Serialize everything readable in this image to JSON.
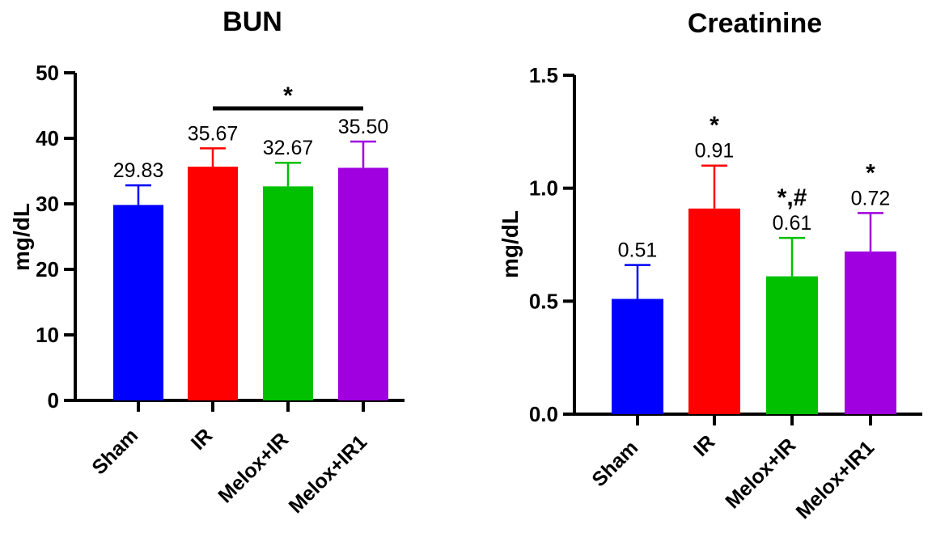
{
  "chart_data": [
    {
      "type": "bar",
      "title": "BUN",
      "ylabel": "mg/dL",
      "ylim": [
        0,
        50
      ],
      "yticks": [
        "0",
        "10",
        "20",
        "30",
        "40",
        "50"
      ],
      "categories": [
        "Sham",
        "IR",
        "Melox+IR",
        "Melox+IR1"
      ],
      "values": [
        29.83,
        35.67,
        32.67,
        35.5
      ],
      "errors": [
        3.0,
        2.8,
        3.6,
        4.0
      ],
      "value_labels": [
        "29.83",
        "35.67",
        "32.67",
        "35.50"
      ],
      "colors": [
        "#0000FF",
        "#FF0000",
        "#00C000",
        "#A000E0"
      ],
      "significance": {
        "bracket_from": 1,
        "bracket_to": 3,
        "label": "*"
      },
      "bar_marks": [
        "",
        "",
        "",
        ""
      ]
    },
    {
      "type": "bar",
      "title": "Creatinine",
      "ylabel": "mg/dL",
      "ylim": [
        0,
        1.5
      ],
      "yticks": [
        "0.0",
        "0.5",
        "1.0",
        "1.5"
      ],
      "categories": [
        "Sham",
        "IR",
        "Melox+IR",
        "Melox+IR1"
      ],
      "values": [
        0.51,
        0.91,
        0.61,
        0.72
      ],
      "errors": [
        0.15,
        0.19,
        0.17,
        0.17
      ],
      "value_labels": [
        "0.51",
        "0.91",
        "0.61",
        "0.72"
      ],
      "colors": [
        "#0000FF",
        "#FF0000",
        "#00C000",
        "#A000E0"
      ],
      "bar_marks": [
        "",
        "*",
        "*,#",
        "*"
      ]
    }
  ]
}
